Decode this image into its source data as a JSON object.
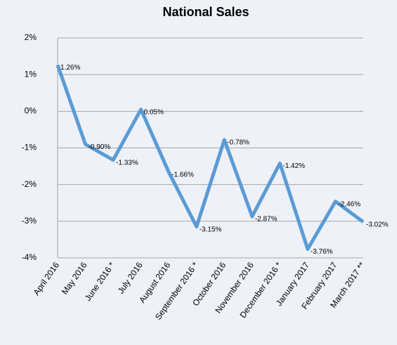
{
  "chart_data": {
    "type": "line",
    "title": "National Sales",
    "categories": [
      "April 2016",
      "May 2016",
      "June 2016 *",
      "July 2016",
      "August 2016",
      "September 2016 *",
      "October 2016",
      "November 2016",
      "December 2016 *",
      "January 2017",
      "February 2017",
      "March 2017 **"
    ],
    "series": [
      {
        "name": "National Sales",
        "color": "#5b9bd5",
        "values": [
          1.26,
          -0.9,
          -1.33,
          0.05,
          -1.66,
          -3.15,
          -0.78,
          -2.87,
          -1.42,
          -3.76,
          -2.46,
          -3.02
        ],
        "value_labels": [
          "1.26%",
          "-0.90%",
          "-1.33%",
          "0.05%",
          "-1.66%",
          "-3.15%",
          "-0.78%",
          "-2.87%",
          "-1.42%",
          "-3.76%",
          "-2.46%",
          "-3.02%"
        ]
      }
    ],
    "ylim": [
      -4,
      2
    ],
    "yticks": [
      {
        "value": 2,
        "label": "2%"
      },
      {
        "value": 1,
        "label": "1%"
      },
      {
        "value": 0,
        "label": "0%"
      },
      {
        "value": -1,
        "label": "-1%"
      },
      {
        "value": -2,
        "label": "-2%"
      },
      {
        "value": -3,
        "label": "-3%"
      },
      {
        "value": -4,
        "label": "-4%"
      }
    ],
    "grid": true
  }
}
